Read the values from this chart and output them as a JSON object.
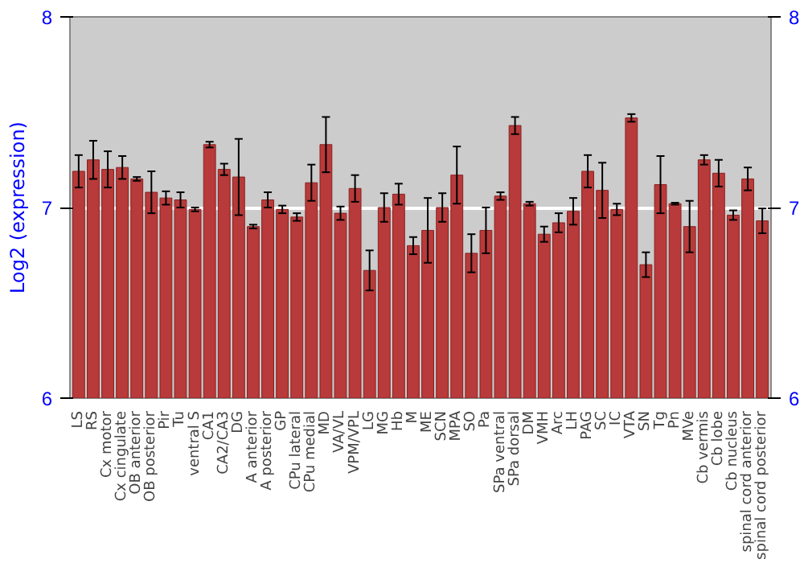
{
  "chart_data": {
    "type": "bar",
    "ylabel": "Log2 (expression)",
    "categories": [
      "LS",
      "RS",
      "Cx motor",
      "Cx cingulate",
      "OB anterior",
      "OB posterior",
      "Pir",
      "Tu",
      "ventral S",
      "CA1",
      "CA2/CA3",
      "DG",
      "A anterior",
      "A posterior",
      "GP",
      "CPu lateral",
      "CPu medial",
      "MD",
      "VA/VL",
      "VPM/VPL",
      "LG",
      "MG",
      "Hb",
      "M",
      "ME",
      "SCN",
      "MPA",
      "SO",
      "Pa",
      "SPa ventral",
      "SPa dorsal",
      "DM",
      "VMH",
      "Arc",
      "LH",
      "PAG",
      "SC",
      "IC",
      "VTA",
      "SN",
      "Tg",
      "Pn",
      "MVe",
      "Cb vermis",
      "Cb lobe",
      "Cb nucleus",
      "spinal cord anterior",
      "spinal cord posterior"
    ],
    "values": [
      7.19,
      7.25,
      7.2,
      7.21,
      7.15,
      7.08,
      7.05,
      7.04,
      6.99,
      7.33,
      7.2,
      7.16,
      6.9,
      7.04,
      6.99,
      6.95,
      7.13,
      7.33,
      6.97,
      7.1,
      6.67,
      7.0,
      7.07,
      6.8,
      6.88,
      7.0,
      7.17,
      6.76,
      6.88,
      7.06,
      7.43,
      7.02,
      6.86,
      6.92,
      6.98,
      7.19,
      7.09,
      6.99,
      7.47,
      6.7,
      7.12,
      7.02,
      6.9,
      7.25,
      7.18,
      6.96,
      7.15,
      6.93
    ],
    "errors": [
      0.085,
      0.1,
      0.095,
      0.06,
      0.01,
      0.11,
      0.035,
      0.04,
      0.01,
      0.015,
      0.03,
      0.2,
      0.01,
      0.04,
      0.02,
      0.02,
      0.095,
      0.145,
      0.035,
      0.07,
      0.105,
      0.075,
      0.055,
      0.045,
      0.17,
      0.075,
      0.15,
      0.1,
      0.12,
      0.02,
      0.045,
      0.01,
      0.04,
      0.05,
      0.07,
      0.085,
      0.145,
      0.03,
      0.02,
      0.065,
      0.15,
      0.005,
      0.135,
      0.025,
      0.07,
      0.025,
      0.06,
      0.065
    ],
    "color": "#b83a3a",
    "ylim": [
      6,
      8
    ],
    "yticks": [
      6,
      7,
      8
    ],
    "y2lim": [
      6,
      8
    ],
    "y2ticks": [
      6,
      7,
      8
    ],
    "grid": "y"
  }
}
